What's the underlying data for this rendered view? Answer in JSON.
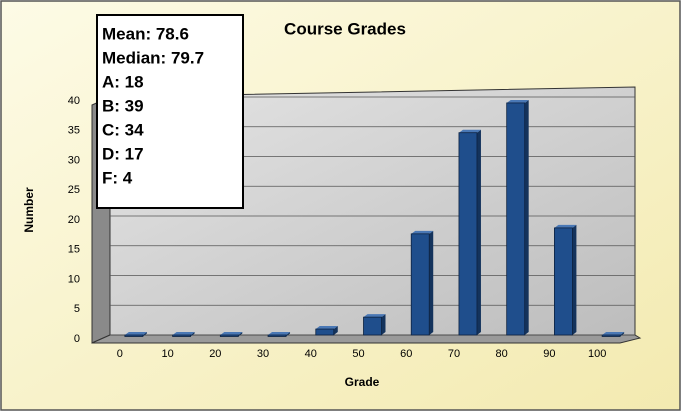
{
  "chart_data": {
    "type": "bar",
    "title": "Course Grades",
    "xlabel": "Grade",
    "ylabel": "Number",
    "categories": [
      "0",
      "10",
      "20",
      "30",
      "40",
      "50",
      "60",
      "70",
      "80",
      "90",
      "100"
    ],
    "values": [
      0,
      0,
      0,
      0,
      1,
      3,
      17,
      34,
      39,
      18,
      0
    ],
    "color": "#1f4e8c",
    "ylim": [
      0,
      40
    ],
    "yticks": [
      0,
      5,
      10,
      15,
      20,
      25,
      30,
      35,
      40
    ],
    "grid": true,
    "annotations": [
      "Mean: 78.6",
      "Median: 79.7",
      "A: 18",
      "B: 39",
      "C: 34",
      "D: 17",
      "F: 4"
    ]
  }
}
